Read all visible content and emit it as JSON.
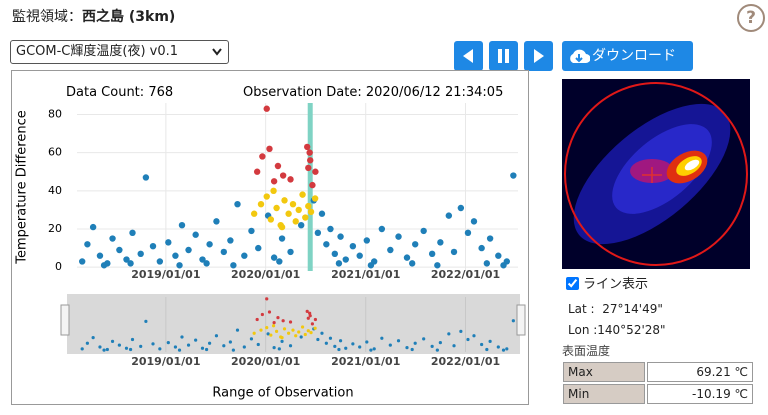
{
  "header": {
    "label": "監視領域：",
    "region": "西之島 (3km)",
    "help": "?"
  },
  "controls": {
    "product": "GCOM-C輝度温度(夜) v0.1",
    "download": "ダウンロード"
  },
  "chart_data": {
    "type": "scatter",
    "count_label": "Data Count:",
    "count": 768,
    "date_label": "Observation Date:",
    "observation_date": "2020/06/12 21:34:05",
    "ylabel": "Temperature Difference",
    "xlabel": "Range of Observation",
    "xlim": [
      "2018/02/10",
      "2022/07/12"
    ],
    "xticks": [
      "2019/01/01",
      "2020/01/01",
      "2021/01/01",
      "2022/01/01"
    ],
    "ylim": [
      -2,
      86
    ],
    "yticks": [
      0,
      20,
      40,
      60,
      80
    ],
    "grid": true,
    "line_color": "#7fd3c4",
    "series": [
      {
        "color": "#1f7fb8",
        "x": [
          "2018/03/01",
          "2018/03/20",
          "2018/04/10",
          "2018/05/05",
          "2018/06/01",
          "2018/06/20",
          "2018/07/15",
          "2018/08/10",
          "2018/09/01",
          "2018/10/01",
          "2018/10/20",
          "2018/11/15",
          "2018/12/10",
          "2019/01/10",
          "2019/02/05",
          "2019/03/01",
          "2019/03/25",
          "2019/04/20",
          "2019/05/15",
          "2019/06/10",
          "2019/07/05",
          "2019/08/01",
          "2019/08/25",
          "2019/09/20",
          "2019/10/15",
          "2019/11/10",
          "2019/12/05",
          "2020/01/10",
          "2020/02/01",
          "2020/03/01",
          "2020/04/01",
          "2020/05/10",
          "2020/06/25",
          "2020/07/10",
          "2020/07/25",
          "2020/08/10",
          "2020/08/25",
          "2020/09/10",
          "2020/10/01",
          "2020/10/20",
          "2020/11/15",
          "2020/12/10",
          "2021/01/05",
          "2021/02/01",
          "2021/03/01",
          "2021/04/01",
          "2021/05/01",
          "2021/06/01",
          "2021/07/01",
          "2021/08/01",
          "2021/09/01",
          "2021/10/01",
          "2021/11/01",
          "2021/11/20",
          "2021/12/15",
          "2022/01/10",
          "2022/02/01",
          "2022/03/01",
          "2022/04/01",
          "2022/05/01",
          "2022/06/01",
          "2022/06/25",
          "2018/05/20",
          "2018/08/25",
          "2019/02/20",
          "2019/05/30",
          "2019/09/05",
          "2020/02/20",
          "2020/09/25",
          "2021/01/20",
          "2021/06/20",
          "2021/09/20",
          "2022/03/20",
          "2022/05/20"
        ],
        "values": [
          3,
          12,
          21,
          6,
          2,
          15,
          9,
          4,
          18,
          7,
          47,
          11,
          3,
          13,
          6,
          22,
          9,
          17,
          4,
          12,
          24,
          8,
          14,
          33,
          6,
          19,
          10,
          27,
          5,
          15,
          8,
          22,
          35,
          18,
          28,
          12,
          20,
          7,
          16,
          4,
          11,
          6,
          14,
          3,
          20,
          9,
          16,
          5,
          12,
          19,
          7,
          13,
          27,
          8,
          31,
          18,
          24,
          10,
          15,
          6,
          3,
          48,
          1,
          2,
          1,
          2,
          1,
          3,
          2,
          1,
          2,
          1,
          2,
          1
        ]
      },
      {
        "color": "#f2c80f",
        "x": [
          "2019/11/20",
          "2019/12/15",
          "2020/01/05",
          "2020/01/20",
          "2020/02/10",
          "2020/02/25",
          "2020/03/10",
          "2020/03/25",
          "2020/04/10",
          "2020/04/20",
          "2020/05/01",
          "2020/05/15",
          "2020/05/25",
          "2020/06/05",
          "2020/06/15",
          "2020/06/30",
          "2020/01/30",
          "2020/03/01"
        ],
        "values": [
          28,
          33,
          37,
          25,
          31,
          22,
          35,
          28,
          33,
          24,
          30,
          38,
          26,
          32,
          29,
          36,
          40,
          21
        ]
      },
      {
        "color": "#d33a3f",
        "x": [
          "2019/12/01",
          "2019/12/20",
          "2020/01/05",
          "2020/01/15",
          "2020/02/01",
          "2020/02/15",
          "2020/03/05",
          "2020/04/01",
          "2020/06/01",
          "2020/06/10",
          "2020/06/12",
          "2020/06/20",
          "2020/07/01",
          "2020/06/05"
        ],
        "values": [
          50,
          58,
          83,
          62,
          45,
          53,
          48,
          46,
          63,
          60,
          56,
          43,
          50,
          52
        ]
      }
    ]
  },
  "map": {
    "line_display": "ライン表示",
    "lat_label": "Lat :",
    "lat": "27°14'49\"",
    "lon_label": "Lon :",
    "lon": "140°52'28\"",
    "surface_temp": "表面温度",
    "table": {
      "rows": [
        [
          "Max",
          "69.21 ℃"
        ],
        [
          "Min",
          "-10.19 ℃"
        ]
      ]
    }
  }
}
